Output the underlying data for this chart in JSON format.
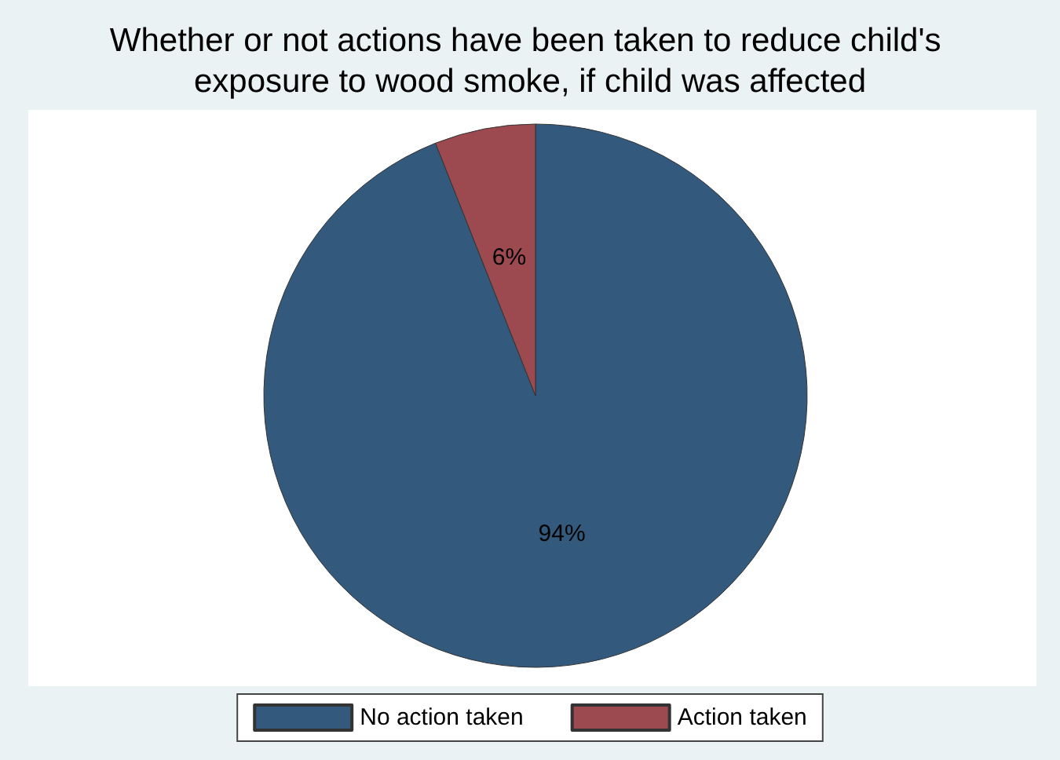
{
  "chart_data": {
    "type": "pie",
    "title": "Whether or not actions have been taken to reduce child's exposure to wood smoke, if child was affected",
    "categories": [
      "No action taken",
      "Action taken"
    ],
    "values": [
      94,
      6
    ],
    "colors": [
      "#335a7c",
      "#9c4a50"
    ],
    "value_labels": [
      "94%",
      "6%"
    ],
    "legend": "bottom"
  }
}
